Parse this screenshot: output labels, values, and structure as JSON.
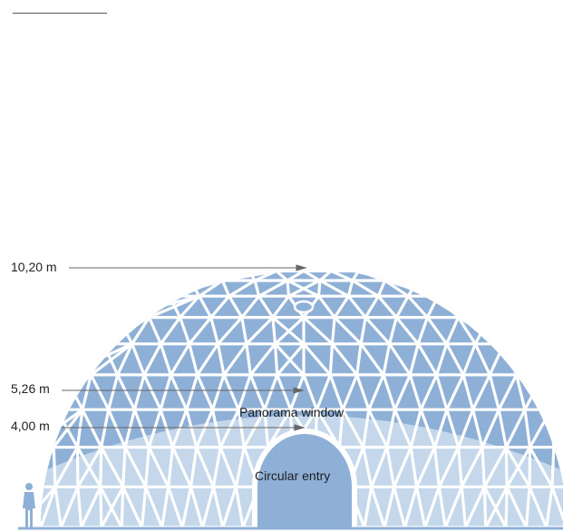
{
  "dimensions": {
    "peak_height": "10,20 m",
    "window_top_height": "5,26 m",
    "entry_height": "4,00 m"
  },
  "labels": {
    "window": "Panorama window",
    "entry": "Circular entry"
  },
  "colors": {
    "dome_fill": "#8eafd6",
    "window_fill": "#c5d7ea",
    "entry_fill": "#8eafd6",
    "strut": "#ffffff",
    "leader": "#666666",
    "person": "#8eafd6"
  },
  "icons": {
    "scale_figure": "person-icon",
    "top_vent": "skylight-icon"
  }
}
